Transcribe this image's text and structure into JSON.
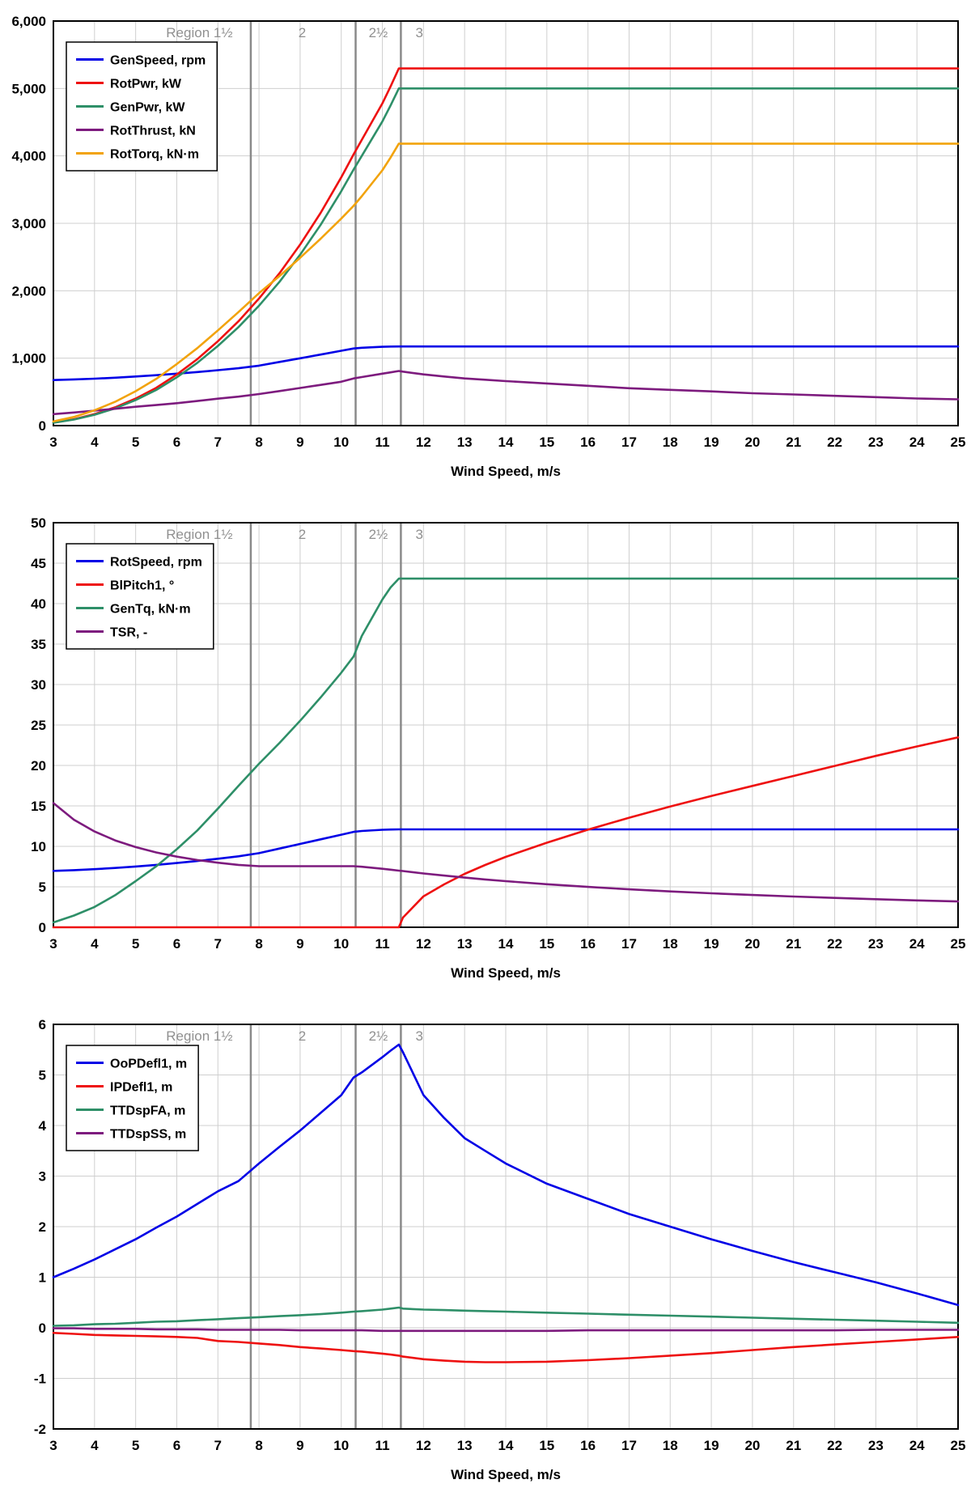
{
  "page": {
    "background": "#ffffff"
  },
  "colors": {
    "blue": "#0000e6",
    "red": "#ee1111",
    "green": "#2e8f68",
    "purple": "#7d1b7e",
    "orange": "#f2a30c",
    "grid": "#cfcfcf",
    "frame": "#000000",
    "region_line": "#8a8a8a",
    "region_text": "#909090"
  },
  "regions": {
    "lines_x": [
      7.8,
      10.35,
      11.45
    ],
    "labels": [
      {
        "text": "Region 1½",
        "x": 6.55
      },
      {
        "text": "2",
        "x": 9.05
      },
      {
        "text": "2½",
        "x": 10.9
      },
      {
        "text": "3",
        "x": 11.9
      }
    ]
  },
  "chart_data": [
    {
      "type": "line",
      "title": "",
      "xlabel": "Wind Speed, m/s",
      "ylabel": "",
      "xlim": [
        3,
        25
      ],
      "ylim": [
        0,
        6000
      ],
      "xticks": [
        3,
        4,
        5,
        6,
        7,
        8,
        9,
        10,
        11,
        12,
        13,
        14,
        15,
        16,
        17,
        18,
        19,
        20,
        21,
        22,
        23,
        24,
        25
      ],
      "yticks": [
        0,
        1000,
        2000,
        3000,
        4000,
        5000,
        6000
      ],
      "ytick_labels": [
        "0",
        "1,000",
        "2,000",
        "3,000",
        "4,000",
        "5,000",
        "6,000"
      ],
      "grid": true,
      "legend_position": "top-left",
      "x": [
        3,
        3.5,
        4,
        4.5,
        5,
        5.5,
        6,
        6.5,
        7,
        7.5,
        8,
        8.5,
        9,
        9.5,
        10,
        10.3,
        10.5,
        11,
        11.2,
        11.4,
        11.5,
        12,
        12.5,
        13,
        13.5,
        14,
        15,
        16,
        17,
        18,
        19,
        20,
        21,
        22,
        23,
        24,
        25
      ],
      "series": [
        {
          "name": "GenSpeed, rpm",
          "color": "blue",
          "values": [
            676,
            685,
            696,
            711,
            729,
            748,
            770,
            794,
            822,
            851,
            889,
            944,
            999,
            1054,
            1110,
            1144,
            1154,
            1169,
            1172,
            1174,
            1174,
            1174,
            1174,
            1174,
            1174,
            1174,
            1174,
            1174,
            1174,
            1174,
            1174,
            1174,
            1174,
            1174,
            1174,
            1174,
            1174
          ]
        },
        {
          "name": "RotPwr, kW",
          "color": "red",
          "values": [
            45,
            95,
            171,
            271,
            401,
            559,
            759,
            986,
            1252,
            1547,
            1885,
            2261,
            2684,
            3156,
            3681,
            4023,
            4237,
            4777,
            5030,
            5297,
            5297,
            5297,
            5297,
            5297,
            5297,
            5297,
            5297,
            5297,
            5297,
            5297,
            5297,
            5297,
            5297,
            5297,
            5297,
            5297,
            5297
          ]
        },
        {
          "name": "GenPwr, kW",
          "color": "green",
          "values": [
            42,
            90,
            161,
            256,
            379,
            528,
            716,
            931,
            1182,
            1460,
            1779,
            2134,
            2534,
            2979,
            3475,
            3798,
            4000,
            4510,
            4749,
            5000,
            5000,
            5000,
            5000,
            5000,
            5000,
            5000,
            5000,
            5000,
            5000,
            5000,
            5000,
            5000,
            5000,
            5000,
            5000,
            5000,
            5000
          ]
        },
        {
          "name": "RotThrust, kN",
          "color": "purple",
          "values": [
            170,
            195,
            222,
            250,
            280,
            305,
            332,
            365,
            400,
            430,
            468,
            512,
            558,
            604,
            650,
            700,
            720,
            770,
            790,
            810,
            800,
            760,
            728,
            700,
            680,
            660,
            625,
            590,
            555,
            530,
            508,
            480,
            462,
            442,
            422,
            402,
            390
          ]
        },
        {
          "name": "RotTorq, kN·m",
          "color": "orange",
          "values": [
            62,
            128,
            227,
            353,
            510,
            692,
            913,
            1150,
            1412,
            1684,
            1965,
            2219,
            2489,
            2772,
            3070,
            3259,
            3402,
            3786,
            3976,
            4181,
            4181,
            4181,
            4181,
            4181,
            4181,
            4181,
            4181,
            4181,
            4181,
            4181,
            4181,
            4181,
            4181,
            4181,
            4181,
            4181,
            4181
          ]
        }
      ]
    },
    {
      "type": "line",
      "title": "",
      "xlabel": "Wind Speed, m/s",
      "ylabel": "",
      "xlim": [
        3,
        25
      ],
      "ylim": [
        0,
        50
      ],
      "xticks": [
        3,
        4,
        5,
        6,
        7,
        8,
        9,
        10,
        11,
        12,
        13,
        14,
        15,
        16,
        17,
        18,
        19,
        20,
        21,
        22,
        23,
        24,
        25
      ],
      "yticks": [
        0,
        5,
        10,
        15,
        20,
        25,
        30,
        35,
        40,
        45,
        50
      ],
      "ytick_labels": [
        "0",
        "5",
        "10",
        "15",
        "20",
        "25",
        "30",
        "35",
        "40",
        "45",
        "50"
      ],
      "grid": true,
      "legend_position": "top-left",
      "x": [
        3,
        3.5,
        4,
        4.5,
        5,
        5.5,
        6,
        6.5,
        7,
        7.5,
        8,
        8.5,
        9,
        9.5,
        10,
        10.3,
        10.5,
        11,
        11.2,
        11.4,
        11.5,
        12,
        12.5,
        13,
        13.5,
        14,
        15,
        16,
        17,
        18,
        19,
        20,
        21,
        22,
        23,
        24,
        25
      ],
      "series": [
        {
          "name": "RotSpeed, rpm",
          "color": "blue",
          "values": [
            6.97,
            7.06,
            7.18,
            7.33,
            7.51,
            7.71,
            7.94,
            8.19,
            8.47,
            8.77,
            9.16,
            9.73,
            10.3,
            10.87,
            11.44,
            11.79,
            11.9,
            12.05,
            12.08,
            12.1,
            12.1,
            12.1,
            12.1,
            12.1,
            12.1,
            12.1,
            12.1,
            12.1,
            12.1,
            12.1,
            12.1,
            12.1,
            12.1,
            12.1,
            12.1,
            12.1,
            12.1
          ]
        },
        {
          "name": "BlPitch1, °",
          "color": "red",
          "values": [
            0,
            0,
            0,
            0,
            0,
            0,
            0,
            0,
            0,
            0,
            0,
            0,
            0,
            0,
            0,
            0,
            0,
            0,
            0,
            0,
            1.2,
            3.83,
            5.3,
            6.6,
            7.7,
            8.7,
            10.45,
            12.06,
            13.54,
            14.92,
            16.23,
            17.47,
            18.7,
            19.94,
            21.18,
            22.35,
            23.47
          ]
        },
        {
          "name": "GenTq, kN·m",
          "color": "green",
          "values": [
            0.6,
            1.45,
            2.51,
            3.96,
            5.7,
            7.53,
            9.65,
            11.97,
            14.67,
            17.47,
            20.21,
            22.79,
            25.52,
            28.41,
            31.46,
            33.47,
            36.0,
            40.5,
            42.0,
            43.09,
            43.09,
            43.09,
            43.09,
            43.09,
            43.09,
            43.09,
            43.09,
            43.09,
            43.09,
            43.09,
            43.09,
            43.09,
            43.09,
            43.09,
            43.09,
            43.09,
            43.09
          ]
        },
        {
          "name": "TSR, -",
          "color": "purple",
          "values": [
            15.35,
            13.29,
            11.84,
            10.74,
            9.91,
            9.25,
            8.73,
            8.31,
            7.98,
            7.71,
            7.55,
            7.55,
            7.55,
            7.55,
            7.55,
            7.55,
            7.48,
            7.23,
            7.12,
            7.0,
            6.95,
            6.65,
            6.39,
            6.14,
            5.91,
            5.7,
            5.32,
            4.99,
            4.69,
            4.43,
            4.2,
            3.99,
            3.8,
            3.63,
            3.47,
            3.32,
            3.19
          ]
        }
      ]
    },
    {
      "type": "line",
      "title": "",
      "xlabel": "Wind Speed, m/s",
      "ylabel": "",
      "xlim": [
        3,
        25
      ],
      "ylim": [
        -2,
        6
      ],
      "xticks": [
        3,
        4,
        5,
        6,
        7,
        8,
        9,
        10,
        11,
        12,
        13,
        14,
        15,
        16,
        17,
        18,
        19,
        20,
        21,
        22,
        23,
        24,
        25
      ],
      "yticks": [
        -2,
        -1,
        0,
        1,
        2,
        3,
        4,
        5,
        6
      ],
      "ytick_labels": [
        "-2",
        "-1",
        "0",
        "1",
        "2",
        "3",
        "4",
        "5",
        "6"
      ],
      "grid": true,
      "legend_position": "top-left",
      "x": [
        3,
        3.5,
        4,
        4.5,
        5,
        5.5,
        6,
        6.5,
        7,
        7.5,
        8,
        8.5,
        9,
        9.5,
        10,
        10.3,
        10.5,
        11,
        11.2,
        11.4,
        11.5,
        12,
        12.5,
        13,
        13.5,
        14,
        15,
        16,
        17,
        18,
        19,
        20,
        21,
        22,
        23,
        24,
        25
      ],
      "series": [
        {
          "name": "OoPDefl1, m",
          "color": "blue",
          "values": [
            1.0,
            1.17,
            1.35,
            1.55,
            1.75,
            1.98,
            2.2,
            2.45,
            2.7,
            2.9,
            3.25,
            3.58,
            3.9,
            4.25,
            4.6,
            4.95,
            5.05,
            5.35,
            5.48,
            5.6,
            5.45,
            4.6,
            4.15,
            3.75,
            3.5,
            3.25,
            2.85,
            2.55,
            2.25,
            2.0,
            1.75,
            1.52,
            1.3,
            1.1,
            0.9,
            0.68,
            0.45
          ]
        },
        {
          "name": "IPDefl1, m",
          "color": "red",
          "values": [
            -0.1,
            -0.12,
            -0.14,
            -0.15,
            -0.16,
            -0.17,
            -0.18,
            -0.2,
            -0.26,
            -0.28,
            -0.31,
            -0.34,
            -0.38,
            -0.41,
            -0.44,
            -0.46,
            -0.47,
            -0.51,
            -0.53,
            -0.55,
            -0.57,
            -0.62,
            -0.65,
            -0.67,
            -0.68,
            -0.68,
            -0.67,
            -0.64,
            -0.6,
            -0.55,
            -0.5,
            -0.44,
            -0.38,
            -0.33,
            -0.28,
            -0.23,
            -0.18
          ]
        },
        {
          "name": "TTDspFA, m",
          "color": "green",
          "values": [
            0.04,
            0.05,
            0.07,
            0.08,
            0.1,
            0.12,
            0.13,
            0.15,
            0.17,
            0.19,
            0.21,
            0.23,
            0.25,
            0.27,
            0.3,
            0.32,
            0.33,
            0.36,
            0.38,
            0.4,
            0.38,
            0.36,
            0.35,
            0.34,
            0.33,
            0.32,
            0.3,
            0.28,
            0.26,
            0.24,
            0.22,
            0.2,
            0.18,
            0.16,
            0.14,
            0.12,
            0.1
          ]
        },
        {
          "name": "TTDspSS, m",
          "color": "purple",
          "values": [
            -0.01,
            -0.01,
            -0.02,
            -0.02,
            -0.02,
            -0.03,
            -0.03,
            -0.03,
            -0.04,
            -0.04,
            -0.04,
            -0.04,
            -0.05,
            -0.05,
            -0.05,
            -0.05,
            -0.05,
            -0.06,
            -0.06,
            -0.06,
            -0.06,
            -0.06,
            -0.06,
            -0.06,
            -0.06,
            -0.06,
            -0.06,
            -0.05,
            -0.05,
            -0.05,
            -0.05,
            -0.05,
            -0.05,
            -0.05,
            -0.04,
            -0.04,
            -0.04
          ]
        }
      ]
    }
  ]
}
